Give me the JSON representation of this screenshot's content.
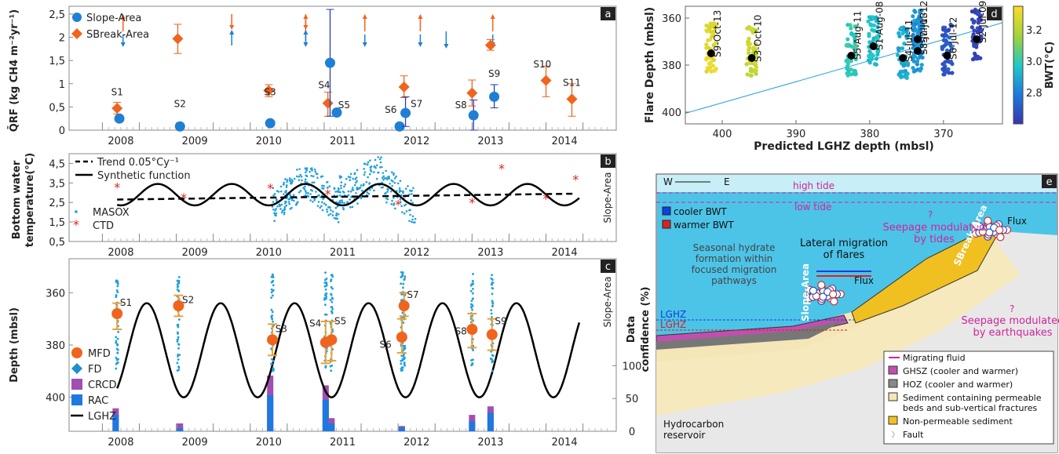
{
  "panels": {
    "a": "a",
    "b": "b",
    "c": "c",
    "d": "d",
    "e": "e"
  },
  "chart_data": [
    {
      "id": "a",
      "type": "scatter",
      "ylabel": "Q̄RF (kg CH4 m⁻²yr⁻¹)",
      "ylim": [
        0,
        2.6
      ],
      "y_ticks": [
        0,
        0.5,
        1,
        1.5,
        2,
        2.5
      ],
      "x_ticks": [
        2008,
        2009,
        2010,
        2011,
        2012,
        2013,
        2014
      ],
      "legend": [
        "Slope-Area",
        "SBreak-Area"
      ],
      "slope_area": [
        {
          "x": 2008.23,
          "y": 0.25,
          "lo": 0.25,
          "hi": 0.25
        },
        {
          "x": 2009.05,
          "y": 0.08,
          "lo": 0.08,
          "hi": 0.08
        },
        {
          "x": 2010.27,
          "y": 0.15,
          "lo": 0.15,
          "hi": 0.15
        },
        {
          "x": 2011.08,
          "y": 1.45,
          "lo": 0.3,
          "hi": 2.6
        },
        {
          "x": 2011.17,
          "y": 0.38,
          "lo": 0.38,
          "hi": 0.38
        },
        {
          "x": 2012.02,
          "y": 0.08,
          "lo": 0.08,
          "hi": 0.08
        },
        {
          "x": 2012.1,
          "y": 0.37,
          "lo": 0.08,
          "hi": 0.72
        },
        {
          "x": 2013.02,
          "y": 0.32,
          "lo": 0.0,
          "hi": 0.65
        },
        {
          "x": 2013.3,
          "y": 0.72,
          "lo": 0.48,
          "hi": 0.98
        }
      ],
      "sbreak_area": [
        {
          "x": 2008.2,
          "y": 0.47,
          "lo": 0.35,
          "hi": 0.6
        },
        {
          "x": 2009.02,
          "y": 1.97,
          "lo": 1.65,
          "hi": 2.28
        },
        {
          "x": 2010.25,
          "y": 0.85,
          "lo": 0.72,
          "hi": 0.98
        },
        {
          "x": 2011.05,
          "y": 0.58,
          "lo": 0.3,
          "hi": 0.82
        },
        {
          "x": 2012.08,
          "y": 0.93,
          "lo": 0.7,
          "hi": 1.17
        },
        {
          "x": 2013.0,
          "y": 0.8,
          "lo": 0.52,
          "hi": 1.08
        },
        {
          "x": 2013.25,
          "y": 1.83,
          "lo": 1.72,
          "hi": 1.95
        },
        {
          "x": 2014.0,
          "y": 1.07,
          "lo": 0.72,
          "hi": 1.38
        },
        {
          "x": 2014.35,
          "y": 0.67,
          "lo": 0.3,
          "hi": 1.0
        }
      ],
      "labels": [
        {
          "t": "S1",
          "x": 2008.2,
          "y": 0.75
        },
        {
          "t": "S2",
          "x": 2009.05,
          "y": 0.5
        },
        {
          "t": "S3",
          "x": 2010.27,
          "y": 0.75
        },
        {
          "t": "S4",
          "x": 2011.0,
          "y": 0.9
        },
        {
          "t": "S5",
          "x": 2011.27,
          "y": 0.47
        },
        {
          "t": "S6",
          "x": 2011.9,
          "y": 0.37
        },
        {
          "t": "S7",
          "x": 2012.25,
          "y": 0.5
        },
        {
          "t": "S8",
          "x": 2012.85,
          "y": 0.47
        },
        {
          "t": "S9",
          "x": 2013.3,
          "y": 1.15
        },
        {
          "t": "S10",
          "x": 2013.95,
          "y": 1.35
        },
        {
          "t": "S11",
          "x": 2014.35,
          "y": 0.95
        }
      ],
      "arrows": [
        {
          "x": 2008.28,
          "d": "red"
        },
        {
          "x": 2009.75,
          "d": "blue-up"
        },
        {
          "x": 2010.75,
          "d": "red"
        },
        {
          "x": 2010.75,
          "d": "blue-up"
        },
        {
          "x": 2011.55,
          "d": "red"
        },
        {
          "x": 2012.3,
          "d": "red"
        },
        {
          "x": 2012.65,
          "d": "blue"
        },
        {
          "x": 2013.28,
          "d": "red"
        }
      ]
    },
    {
      "id": "b",
      "type": "line",
      "ylabel": "Bottom water temperature(°C)",
      "ylim": [
        0.5,
        5.0
      ],
      "y_ticks": [
        0.5,
        1.5,
        2.5,
        3.5,
        4.5
      ],
      "x_ticks": [
        2008,
        2009,
        2010,
        2011,
        2012,
        2013,
        2014
      ],
      "legend": [
        "Trend 0.05°Cy⁻¹",
        "Synthetic function",
        "MASOX",
        "CTD"
      ],
      "side_label": "Slope-Area",
      "trend": {
        "x0": 2008.2,
        "y0": 2.65,
        "x1": 2014.4,
        "y1": 2.95
      },
      "synthetic": {
        "mean": 2.9,
        "amp": 0.55,
        "period": 1.0,
        "phase": 2008.5
      },
      "masox_range": [
        2010.3,
        2012.25
      ],
      "ctd": [
        {
          "x": 2008.2,
          "y": 3.3
        },
        {
          "x": 2009.1,
          "y": 2.75
        },
        {
          "x": 2010.27,
          "y": 3.25
        },
        {
          "x": 2011.05,
          "y": 2.95
        },
        {
          "x": 2012.0,
          "y": 2.4
        },
        {
          "x": 2013.0,
          "y": 2.5
        },
        {
          "x": 2013.4,
          "y": 4.25
        },
        {
          "x": 2014.0,
          "y": 2.7
        },
        {
          "x": 2014.4,
          "y": 3.7
        }
      ]
    },
    {
      "id": "c",
      "type": "line",
      "ylabel": "Depth (mbsl)",
      "y2label": "Data confidence (%)",
      "ylim": [
        350,
        410
      ],
      "y_ticks": [
        360,
        380,
        400
      ],
      "y2_ticks": [
        0,
        50,
        100
      ],
      "x_ticks": [
        2008,
        2009,
        2010,
        2011,
        2012,
        2013,
        2014
      ],
      "side_label": "Slope-Area",
      "legend": [
        "MFD",
        "FD",
        "CRCD",
        "RAC",
        "LGHZ"
      ],
      "lghz": {
        "mean": 382,
        "amp": 18,
        "period": 1.0,
        "phase": 2008.85
      },
      "mfd": [
        {
          "x": 2008.2,
          "y": 368,
          "lo": 364,
          "hi": 374
        },
        {
          "x": 2009.03,
          "y": 365,
          "lo": 361,
          "hi": 369
        },
        {
          "x": 2010.3,
          "y": 378,
          "lo": 372,
          "hi": 384
        },
        {
          "x": 2011.02,
          "y": 379,
          "lo": 371,
          "hi": 387
        },
        {
          "x": 2011.1,
          "y": 378,
          "lo": 371,
          "hi": 386
        },
        {
          "x": 2012.05,
          "y": 377,
          "lo": 370,
          "hi": 383
        },
        {
          "x": 2012.08,
          "y": 365,
          "lo": 360,
          "hi": 369
        },
        {
          "x": 2013.0,
          "y": 374,
          "lo": 368,
          "hi": 381
        },
        {
          "x": 2013.27,
          "y": 376,
          "lo": 370,
          "hi": 382
        }
      ],
      "labels": [
        {
          "t": "S1",
          "x": 2008.32,
          "y": 365
        },
        {
          "t": "S2",
          "x": 2009.16,
          "y": 364
        },
        {
          "t": "S3",
          "x": 2010.42,
          "y": 375
        },
        {
          "t": "S4",
          "x": 2010.88,
          "y": 373
        },
        {
          "t": "S5",
          "x": 2011.22,
          "y": 372
        },
        {
          "t": "S6",
          "x": 2011.83,
          "y": 381
        },
        {
          "t": "S7",
          "x": 2012.2,
          "y": 362
        },
        {
          "t": "S8",
          "x": 2012.85,
          "y": 376
        },
        {
          "t": "S9",
          "x": 2013.39,
          "y": 372
        }
      ],
      "bars": [
        {
          "x": 2008.18,
          "c": 35,
          "r": 25
        },
        {
          "x": 2009.05,
          "c": 12,
          "r": 5
        },
        {
          "x": 2010.27,
          "c": 85,
          "r": 55
        },
        {
          "x": 2011.02,
          "c": 70,
          "r": 48
        },
        {
          "x": 2011.1,
          "c": 20,
          "r": 12
        },
        {
          "x": 2012.05,
          "c": 8,
          "r": 6
        },
        {
          "x": 2013.0,
          "c": 25,
          "r": 15
        },
        {
          "x": 2013.25,
          "c": 38,
          "r": 28
        }
      ]
    },
    {
      "id": "d",
      "type": "scatter",
      "xlabel": "Predicted LGHZ depth (mbsl)",
      "ylabel": "Flare Depth (mbsl)",
      "xlim": [
        405,
        362
      ],
      "ylim": [
        355,
        405
      ],
      "x_ticks": [
        400,
        390,
        380,
        370
      ],
      "y_ticks": [
        360,
        380,
        400
      ],
      "colorbar": {
        "label": "BWT(°C)",
        "min": 2.6,
        "max": 3.35,
        "ticks": [
          2.8,
          3.0,
          3.2
        ]
      },
      "groups": [
        {
          "t": "S9-Oct-13",
          "x": 401.5,
          "y": 375,
          "bwt": 3.3
        },
        {
          "t": "S3-Oct-10",
          "x": 396,
          "y": 377,
          "bwt": 3.25
        },
        {
          "t": "S5-Aug-11",
          "x": 382.5,
          "y": 376,
          "bwt": 3.0
        },
        {
          "t": "S1-Aug-08",
          "x": 379.5,
          "y": 372,
          "bwt": 2.95
        },
        {
          "t": "S4-Jul-11",
          "x": 375.5,
          "y": 377,
          "bwt": 2.9
        },
        {
          "t": "S7-Jul-12",
          "x": 373.5,
          "y": 369,
          "bwt": 2.85
        },
        {
          "t": "S8-Jul-13",
          "x": 373.5,
          "y": 374,
          "bwt": 2.85
        },
        {
          "t": "S6-Jul-12",
          "x": 369.5,
          "y": 376,
          "bwt": 2.7
        },
        {
          "t": "S2-Jul-09",
          "x": 365.5,
          "y": 369,
          "bwt": 2.65
        }
      ]
    },
    {
      "id": "e",
      "type": "diagram",
      "compass": [
        "W",
        "E"
      ],
      "texts": {
        "high_tide": "high tide",
        "low_tide": "low tide",
        "cooler": "cooler BWT",
        "warmer": "warmer BWT",
        "seepage_tides": "Seepage modulated\nby tides",
        "lateral": "Lateral migration\nof flares",
        "seasonal": "Seasonal hydrate\nformation within\nfocused migration\npathways",
        "flux": "Flux",
        "slope": "Slope-Area",
        "sbreak": "SBreak-Area",
        "lghz": "LGHZ",
        "seepage_eq": "Seepage modulated\nby earthquakes",
        "hydro": "Hydrocarbon\nreservoir",
        "q": "?"
      },
      "legend": [
        "Migrating fluid",
        "GHSZ (cooler and warmer)",
        "HOZ (cooler and warmer)",
        "Sediment containing permeable\nbeds and sub-vertical fractures",
        "Non-permeable sediment",
        "Fault"
      ]
    }
  ]
}
